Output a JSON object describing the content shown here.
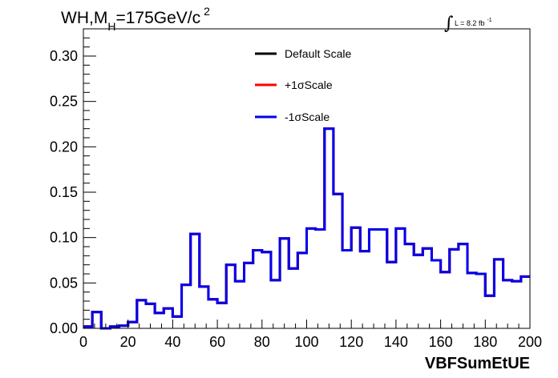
{
  "chart_data": {
    "type": "line",
    "title_main": "WH,M",
    "title_sub": "H",
    "title_rest": "=175GeV/c",
    "title_sup": "2",
    "lumi_label": "L = 8.2 fb",
    "lumi_sup": "-1",
    "xlabel": "VBFSumEtUE",
    "ylabel": "",
    "xlim": [
      0,
      200
    ],
    "ylim": [
      0,
      0.33
    ],
    "x_ticks": [
      "0",
      "20",
      "40",
      "60",
      "80",
      "100",
      "120",
      "140",
      "160",
      "180",
      "200"
    ],
    "y_ticks": [
      "0.00",
      "0.05",
      "0.10",
      "0.15",
      "0.20",
      "0.25",
      "0.30"
    ],
    "bin_edges": [
      0,
      4,
      8,
      12,
      16,
      20,
      24,
      28,
      32,
      36,
      40,
      44,
      48,
      52,
      56,
      60,
      64,
      68,
      72,
      76,
      80,
      84,
      88,
      92,
      96,
      100,
      104,
      108,
      112,
      116,
      120,
      124,
      128,
      132,
      136,
      140,
      144,
      148,
      152,
      156,
      160,
      164,
      168,
      172,
      176,
      180,
      184,
      188,
      192,
      196,
      200
    ],
    "series": [
      {
        "name": "Default Scale",
        "color": "#000000",
        "values": [
          0.002,
          0.018,
          0.0,
          0.002,
          0.003,
          0.007,
          0.031,
          0.027,
          0.017,
          0.022,
          0.013,
          0.048,
          0.104,
          0.046,
          0.032,
          0.028,
          0.07,
          0.052,
          0.072,
          0.086,
          0.084,
          0.053,
          0.099,
          0.066,
          0.083,
          0.11,
          0.109,
          0.22,
          0.148,
          0.086,
          0.111,
          0.085,
          0.109,
          0.109,
          0.073,
          0.11,
          0.093,
          0.081,
          0.088,
          0.075,
          0.062,
          0.087,
          0.093,
          0.061,
          0.06,
          0.036,
          0.076,
          0.053,
          0.052,
          0.057
        ]
      },
      {
        "name": "+1σScale",
        "color": "#ff0000",
        "values": [
          0.002,
          0.018,
          0.0,
          0.002,
          0.003,
          0.007,
          0.031,
          0.027,
          0.017,
          0.022,
          0.013,
          0.048,
          0.104,
          0.046,
          0.032,
          0.028,
          0.07,
          0.052,
          0.072,
          0.086,
          0.084,
          0.053,
          0.099,
          0.066,
          0.083,
          0.11,
          0.109,
          0.22,
          0.148,
          0.086,
          0.111,
          0.085,
          0.109,
          0.109,
          0.073,
          0.11,
          0.093,
          0.081,
          0.088,
          0.075,
          0.062,
          0.087,
          0.093,
          0.061,
          0.06,
          0.036,
          0.076,
          0.053,
          0.052,
          0.057
        ]
      },
      {
        "name": "-1σScale",
        "color": "#0000ee",
        "values": [
          0.002,
          0.018,
          0.0,
          0.002,
          0.003,
          0.007,
          0.031,
          0.027,
          0.017,
          0.022,
          0.013,
          0.048,
          0.104,
          0.046,
          0.032,
          0.028,
          0.07,
          0.052,
          0.072,
          0.086,
          0.084,
          0.053,
          0.099,
          0.066,
          0.083,
          0.11,
          0.109,
          0.22,
          0.148,
          0.086,
          0.111,
          0.085,
          0.109,
          0.109,
          0.073,
          0.11,
          0.093,
          0.081,
          0.088,
          0.075,
          0.062,
          0.087,
          0.093,
          0.061,
          0.06,
          0.036,
          0.076,
          0.053,
          0.052,
          0.057
        ]
      }
    ],
    "legend_placement": "top-center",
    "grid": false
  }
}
